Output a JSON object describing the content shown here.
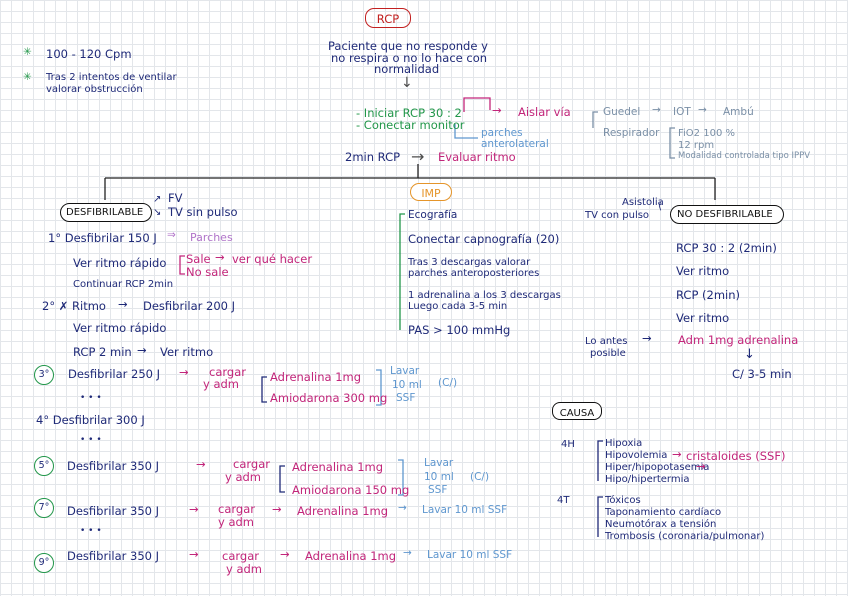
{
  "title": "RCP",
  "top_notes": [
    "100 - 120 Cpm",
    "Tras 2 intentos de ventilar",
    "valorar obstrucción"
  ],
  "center": {
    "l1": "Paciente que no responde y",
    "l2": "no respira o no lo hace con",
    "l3": "normalidad",
    "step1": "- Iniciar RCP 30 : 2",
    "step2": "- Conectar monitor",
    "aislar": "Aislar vía",
    "guedel": "Guedel",
    "iot": "IOT",
    "ambu": "Ambú",
    "respirador": "Respirador",
    "fio2": "FiO2 100 %",
    "rpm": "12 rpm",
    "modalidad": "Modalidad controlada tipo IPPV",
    "parches": "parches",
    "anterolateral": "anterolateral",
    "eval_a": "2min RCP",
    "eval_b": "Evaluar ritmo"
  },
  "left": {
    "desfib_box": "DESFIBRILABLE",
    "fv": "FV",
    "tv": "TV sin pulso",
    "r1a": "1° Desfibrilar 150 J",
    "r1b": "Parches",
    "r2a": "Ver ritmo rápido",
    "sale": "Sale",
    "nosale": "No sale",
    "quehacer": "ver qué hacer",
    "r3": "Continuar RCP 2min",
    "r4a": "2° ✗ Ritmo",
    "r4b": "Desfibrilar 200 J",
    "r5": "Ver ritmo rápido",
    "r6a": "RCP 2 min",
    "r6b": "Ver ritmo",
    "c3": "3°",
    "r7": "Desfibrilar 250 J",
    "cargar": "cargar",
    "yadm": "y adm",
    "adr1": "Adrenalina 1mg",
    "amio300": "Amiodarona 300 mg",
    "lavar": "Lavar",
    "ml10": "10 ml",
    "ssf": "SSF",
    "c_": "(C/)",
    "dots": "• • •",
    "r8": "4° Desfibrilar 300 J",
    "dots2": "• • •",
    "c5": "5°",
    "r9": "Desfibrilar 350 J",
    "amio150": "Amiodarona 150 mg",
    "c7": "7°",
    "r10": "Desfibrilar 350 J",
    "ssf10": "Lavar 10 ml SSF",
    "dots3": "• • •",
    "c9": "9°",
    "r11": "Desfibrilar 350 J"
  },
  "middle": {
    "box": "IMP",
    "i1": "Ecografía",
    "i2": "Conectar capnografía (20)",
    "i3a": "Tras 3 descargas valorar",
    "i3b": "parches anteroposteriores",
    "i4a": "1 adrenalina a los 3 descargas",
    "i4b": "Luego cada 3-5 min",
    "i5": "PAS > 100 mmHg"
  },
  "right": {
    "asistolia": "Asistolia",
    "tvpulso": "TV con pulso",
    "box": "NO DESFIBRILABLE",
    "n1": "RCP 30 : 2  (2min)",
    "n2": "Ver ritmo",
    "n3": "RCP  (2min)",
    "n4": "Ver ritmo",
    "loantes": "Lo antes",
    "posible": "posible",
    "adm": "Adm 1mg adrenalina",
    "c35": "C/ 3-5 min",
    "causa": "CAUSA",
    "h4": "4H",
    "h1": "Hipoxia",
    "h2a": "Hipovolemia",
    "h2b": "cristaloides (SSF)",
    "h3": "Hiper/hipopotasemia",
    "h4b": "Hipo/hipertermia",
    "t4": "4T",
    "t1": "Tóxicos",
    "t2": "Taponamiento cardíaco",
    "t3": "Neumotórax a tensión",
    "t5": "Trombosis (coronaria/pulmonar)"
  }
}
